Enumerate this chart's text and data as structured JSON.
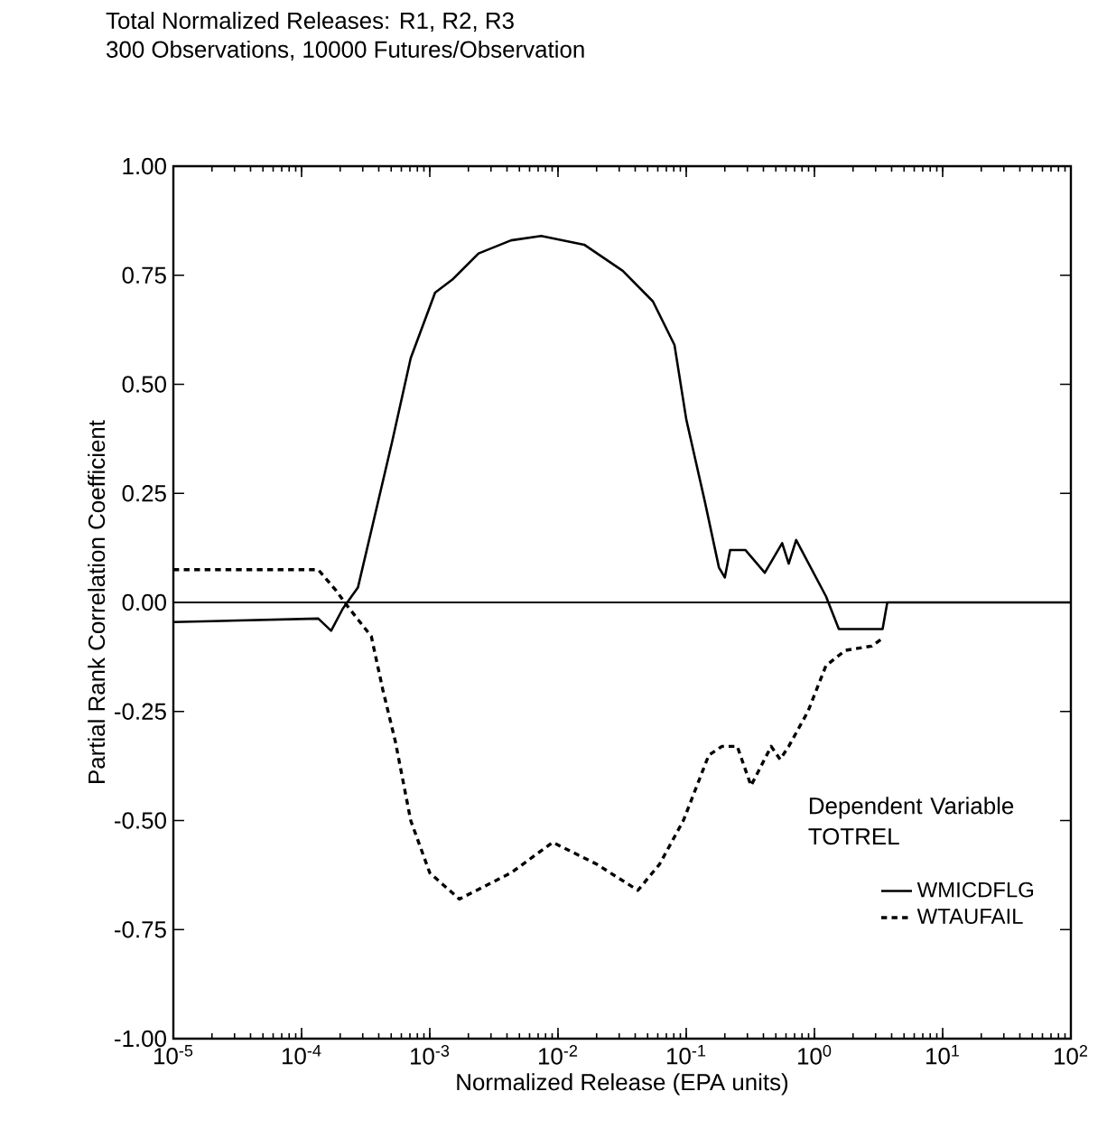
{
  "chart_data": {
    "type": "line",
    "title": "Total Normalized Releases: R1, R2, R3",
    "subtitle": "300 Observations, 10000 Futures/Observation",
    "xlabel": "Normalized Release (EPA units)",
    "ylabel": "Partial Rank Correlation Coefficient",
    "legend_title": "Dependent Variable TOTREL",
    "log": "x",
    "xlim": [
      1e-05,
      100
    ],
    "ylim": [
      -1,
      1
    ],
    "xticks": [
      {
        "value": 1e-05,
        "label": "10$^{-5}$"
      },
      {
        "value": 0.0001,
        "label": "10$^{-4}$"
      },
      {
        "value": 0.001,
        "label": "10$^{-3}$"
      },
      {
        "value": 0.01,
        "label": "10$^{-2}$"
      },
      {
        "value": 0.1,
        "label": "10$^{-1}$"
      },
      {
        "value": 1,
        "label": "10$^{0}$"
      },
      {
        "value": 10,
        "label": "10$^{1}$"
      },
      {
        "value": 100,
        "label": "10$^{2}$"
      }
    ],
    "yticks": [
      {
        "value": -1,
        "label": "-1.00"
      },
      {
        "value": -0.75,
        "label": "-0.75"
      },
      {
        "value": -0.5,
        "label": "-0.50"
      },
      {
        "value": -0.25,
        "label": "-0.25"
      },
      {
        "value": 0,
        "label": "0.00"
      },
      {
        "value": 0.25,
        "label": "0.25"
      },
      {
        "value": 0.5,
        "label": "0.50"
      },
      {
        "value": 0.75,
        "label": "0.75"
      },
      {
        "value": 1,
        "label": "1.00"
      }
    ],
    "ref_lines": [
      {
        "axis": "y",
        "value": 0,
        "color": "#000000"
      }
    ],
    "legend": "bottom right",
    "marker": "none",
    "series": [
      {
        "name": "WMICDFLG",
        "color": "#000000",
        "line_style": "solid",
        "x": [
          1e-05,
          0.000135,
          0.00017,
          0.00021,
          0.000275,
          0.00036,
          0.00051,
          0.00071,
          0.0011,
          0.0015,
          0.0024,
          0.0043,
          0.0074,
          0.016,
          0.032,
          0.055,
          0.081,
          0.1,
          0.14,
          0.18,
          0.2,
          0.22,
          0.29,
          0.41,
          0.56,
          0.63,
          0.72,
          1.23,
          1.55,
          3.4,
          3.7,
          100
        ],
        "values": [
          -0.045,
          -0.037,
          -0.065,
          -0.014,
          0.034,
          0.18,
          0.37,
          0.56,
          0.71,
          0.74,
          0.8,
          0.83,
          0.84,
          0.82,
          0.76,
          0.69,
          0.59,
          0.42,
          0.23,
          0.08,
          0.057,
          0.12,
          0.12,
          0.068,
          0.136,
          0.089,
          0.143,
          0.014,
          -0.061,
          -0.061,
          0,
          0
        ]
      },
      {
        "name": "WTAUFAIL",
        "color": "#000000",
        "line_style": "dashed",
        "x": [
          1e-05,
          0.000135,
          0.000186,
          0.00023,
          0.00035,
          0.00043,
          0.00054,
          0.00071,
          0.001,
          0.0017,
          0.0043,
          0.0091,
          0.02,
          0.042,
          0.062,
          0.095,
          0.15,
          0.19,
          0.25,
          0.32,
          0.46,
          0.54,
          0.63,
          0.89,
          1.23,
          1.74,
          2.8,
          3.5
        ],
        "values": [
          0.075,
          0.075,
          0.027,
          -0.01,
          -0.078,
          -0.2,
          -0.32,
          -0.5,
          -0.62,
          -0.68,
          -0.62,
          -0.55,
          -0.6,
          -0.66,
          -0.6,
          -0.5,
          -0.35,
          -0.33,
          -0.33,
          -0.42,
          -0.33,
          -0.36,
          -0.33,
          -0.25,
          -0.145,
          -0.11,
          -0.1,
          -0.08
        ]
      }
    ]
  }
}
